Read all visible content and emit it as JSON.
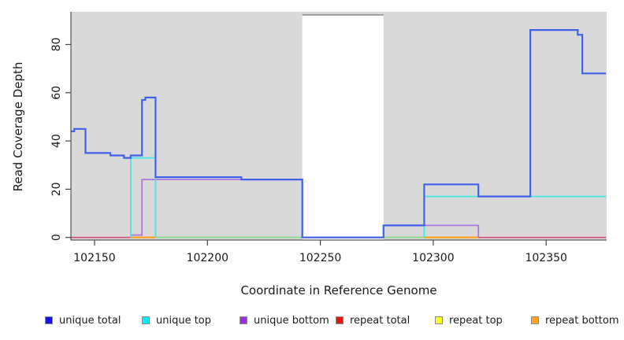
{
  "chart_data": {
    "type": "line",
    "subtype": "step-coverage",
    "title": "",
    "xlabel": "Coordinate in Reference Genome",
    "ylabel": "Read Coverage Depth",
    "xlim": [
      102139.5,
      102376.5
    ],
    "ylim": [
      0,
      93.5
    ],
    "x_ticks": [
      102150,
      102200,
      102250,
      102300,
      102350
    ],
    "y_ticks": [
      0,
      20,
      40,
      60,
      80
    ],
    "grid": "off",
    "panel_background": "#d9d9d9",
    "outer_background": "#ffffff",
    "gap_region": {
      "from": 102242,
      "to": 102278,
      "fill": "#ffffff",
      "cap_color": "#8a8a8a"
    },
    "legend_position": "bottom",
    "legend": [
      {
        "label": "unique total",
        "color": "#1414e6"
      },
      {
        "label": "unique top",
        "color": "#00f0f5"
      },
      {
        "label": "unique bottom",
        "color": "#9b30d9"
      },
      {
        "label": "repeat total",
        "color": "#e81414"
      },
      {
        "label": "repeat top",
        "color": "#fdfd1f"
      },
      {
        "label": "repeat bottom",
        "color": "#ffa51f"
      }
    ],
    "series": [
      {
        "name": "repeat total",
        "color": "#d14a78",
        "width": 1.6,
        "strokes": [
          [
            [
              102139.5,
              0
            ],
            [
              102376.5,
              0
            ]
          ]
        ]
      },
      {
        "name": "repeat top",
        "color": "#8fdc8f",
        "width": 1.8,
        "strokes": [
          [
            [
              102177,
              0
            ],
            [
              102242,
              0
            ]
          ],
          [
            [
              102278,
              0
            ],
            [
              102296,
              0
            ]
          ]
        ]
      },
      {
        "name": "repeat bottom",
        "color": "#ff9f1a",
        "width": 2.2,
        "strokes": [
          [
            [
              102166,
              0
            ],
            [
              102177,
              0
            ]
          ],
          [
            [
              102296,
              0
            ],
            [
              102320,
              0
            ]
          ]
        ]
      },
      {
        "name": "unique bottom",
        "color": "#b175de",
        "width": 1.8,
        "strokes": [
          [
            [
              102166,
              0
            ],
            [
              102166,
              1
            ],
            [
              102171,
              1
            ],
            [
              102171,
              24
            ],
            [
              102242,
              24
            ],
            [
              102242,
              0
            ],
            [
              102278,
              0
            ],
            [
              102278,
              5
            ],
            [
              102320,
              5
            ],
            [
              102320,
              0
            ]
          ]
        ]
      },
      {
        "name": "unique top",
        "color": "#45e6ea",
        "width": 1.8,
        "strokes": [
          [
            [
              102166,
              0
            ],
            [
              102166,
              33
            ],
            [
              102177,
              33
            ],
            [
              102177,
              0
            ]
          ],
          [
            [
              102296,
              0
            ],
            [
              102296,
              17
            ],
            [
              102376.5,
              17
            ]
          ]
        ]
      },
      {
        "name": "unique total",
        "color": "#3f63e8",
        "width": 2.2,
        "strokes": [
          [
            [
              102139.5,
              44
            ],
            [
              102141,
              44
            ],
            [
              102141,
              45
            ],
            [
              102146,
              45
            ],
            [
              102146,
              35
            ],
            [
              102157,
              35
            ],
            [
              102157,
              34
            ],
            [
              102163,
              34
            ],
            [
              102163,
              33
            ],
            [
              102166,
              33
            ],
            [
              102166,
              34
            ],
            [
              102171,
              34
            ],
            [
              102171,
              57
            ],
            [
              102172.5,
              57
            ],
            [
              102172.5,
              58
            ],
            [
              102177,
              58
            ],
            [
              102177,
              25
            ],
            [
              102215,
              25
            ],
            [
              102215,
              24
            ],
            [
              102242,
              24
            ],
            [
              102242,
              0
            ],
            [
              102278,
              0
            ],
            [
              102278,
              5
            ],
            [
              102296,
              5
            ],
            [
              102296,
              22
            ],
            [
              102320,
              22
            ],
            [
              102320,
              17
            ],
            [
              102343,
              17
            ],
            [
              102343,
              86
            ],
            [
              102364,
              86
            ],
            [
              102364,
              84
            ],
            [
              102366,
              84
            ],
            [
              102366,
              68
            ],
            [
              102376.5,
              68
            ]
          ]
        ]
      }
    ]
  }
}
